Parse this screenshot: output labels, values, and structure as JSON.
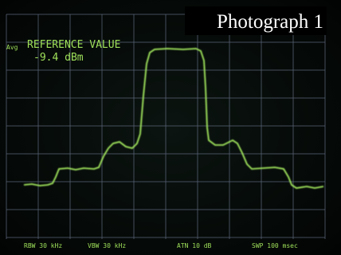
{
  "header": {
    "title": "Photograph 1"
  },
  "screen": {
    "mode": "Avg",
    "reference_label": "REFERENCE VALUE",
    "reference_value": "-9.4 dBm",
    "settings": [
      "RBW 30 kHz",
      "VBW 30 kHz",
      "ATN 10 dB",
      "SWP 100 msec"
    ]
  }
}
